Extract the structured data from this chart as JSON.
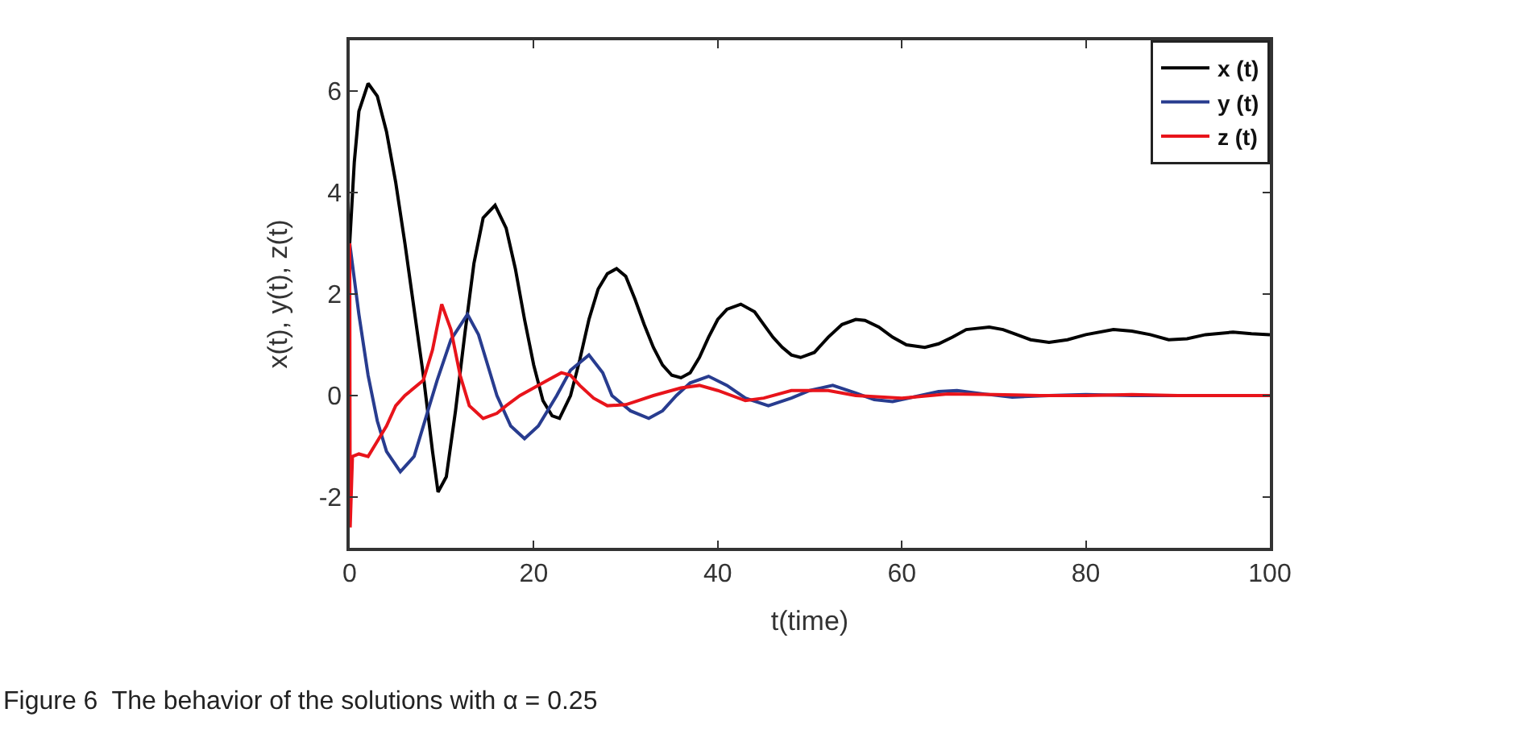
{
  "chart_data": {
    "type": "line",
    "xlabel": "t(time)",
    "ylabel": "x(t), y(t), z(t)",
    "xlim": [
      0,
      100
    ],
    "ylim": [
      -3,
      7
    ],
    "xticks": [
      0,
      20,
      40,
      60,
      80,
      100
    ],
    "yticks": [
      -2,
      0,
      2,
      4,
      6
    ],
    "grid": false,
    "legend": "top right",
    "marker": "none",
    "line_style": "solid",
    "annotations": [
      "Figure 6  The behavior of the solutions with α = 0.25"
    ],
    "series": [
      {
        "name": "x (t)",
        "color": "#000000",
        "x": [
          0,
          0.5,
          1,
          2,
          3,
          4,
          5,
          6,
          7,
          8,
          9,
          9.6,
          10.5,
          11.5,
          12.5,
          13.5,
          14.5,
          15.8,
          17,
          18,
          19,
          20,
          21,
          22,
          22.8,
          24,
          25,
          26,
          27,
          28,
          29,
          30,
          31,
          32,
          33,
          34,
          35,
          36,
          37,
          38,
          39,
          40,
          41,
          42.5,
          44,
          45,
          46,
          47,
          48,
          49,
          50.5,
          52,
          53.5,
          55,
          56,
          57.5,
          59,
          60.5,
          62.5,
          64,
          65.5,
          67,
          69.5,
          71,
          72.5,
          74,
          76,
          78,
          80,
          83,
          85,
          87,
          89,
          91,
          93,
          96,
          98,
          100
        ],
        "values": [
          3,
          4.6,
          5.6,
          6.15,
          5.9,
          5.2,
          4.2,
          3,
          1.7,
          0.4,
          -1.1,
          -1.9,
          -1.6,
          -0.3,
          1.2,
          2.6,
          3.5,
          3.75,
          3.3,
          2.5,
          1.5,
          0.6,
          -0.1,
          -0.4,
          -0.45,
          0,
          0.7,
          1.5,
          2.1,
          2.4,
          2.5,
          2.35,
          1.9,
          1.4,
          0.95,
          0.6,
          0.4,
          0.35,
          0.45,
          0.75,
          1.15,
          1.5,
          1.7,
          1.8,
          1.65,
          1.4,
          1.15,
          0.95,
          0.8,
          0.75,
          0.85,
          1.15,
          1.4,
          1.5,
          1.48,
          1.35,
          1.15,
          1,
          0.95,
          1.02,
          1.15,
          1.3,
          1.35,
          1.3,
          1.2,
          1.1,
          1.05,
          1.1,
          1.2,
          1.3,
          1.27,
          1.2,
          1.1,
          1.12,
          1.2,
          1.25,
          1.22,
          1.2
        ]
      },
      {
        "name": "y (t)",
        "color": "#283c8f",
        "x": [
          0,
          1,
          2,
          3,
          4,
          5.5,
          7,
          8,
          9.5,
          11,
          12.8,
          14,
          16,
          17.5,
          19,
          20.5,
          22.5,
          24,
          26,
          27.5,
          28.5,
          30.5,
          32.5,
          34,
          35.5,
          37,
          39,
          41,
          43,
          45.5,
          48,
          50,
          52.5,
          55,
          57,
          59,
          62,
          64,
          66,
          69,
          72,
          76,
          80,
          85,
          90
        ],
        "values": [
          3,
          1.6,
          0.4,
          -0.5,
          -1.1,
          -1.5,
          -1.2,
          -0.6,
          0.3,
          1.1,
          1.6,
          1.2,
          0,
          -0.6,
          -0.85,
          -0.6,
          0,
          0.5,
          0.8,
          0.45,
          0,
          -0.3,
          -0.45,
          -0.3,
          0,
          0.25,
          0.38,
          0.2,
          -0.05,
          -0.2,
          -0.05,
          0.1,
          0.2,
          0.05,
          -0.08,
          -0.12,
          0,
          0.08,
          0.1,
          0.03,
          -0.03,
          0,
          0.02,
          0,
          0
        ]
      },
      {
        "name": "z (t)",
        "color": "#e8141b",
        "x": [
          0,
          0.05,
          0.3,
          1,
          2,
          3,
          4,
          5,
          6,
          8,
          9,
          10,
          11,
          12,
          13,
          14.5,
          16,
          17,
          18.5,
          20,
          21.5,
          23,
          24,
          25,
          26.5,
          28,
          30,
          31,
          33,
          36,
          38,
          40,
          43,
          45,
          48,
          52,
          55,
          60,
          65,
          70,
          75,
          80,
          85,
          90,
          95,
          100
        ],
        "values": [
          3,
          -2.6,
          -1.2,
          -1.15,
          -1.2,
          -0.9,
          -0.6,
          -0.2,
          0,
          0.3,
          0.9,
          1.8,
          1.3,
          0.4,
          -0.2,
          -0.45,
          -0.35,
          -0.2,
          0,
          0.15,
          0.3,
          0.45,
          0.4,
          0.2,
          -0.05,
          -0.2,
          -0.18,
          -0.12,
          0,
          0.15,
          0.2,
          0.1,
          -0.1,
          -0.05,
          0.1,
          0.1,
          0,
          -0.05,
          0.03,
          0.02,
          0,
          0,
          0.02,
          0,
          0,
          0
        ]
      }
    ]
  }
}
